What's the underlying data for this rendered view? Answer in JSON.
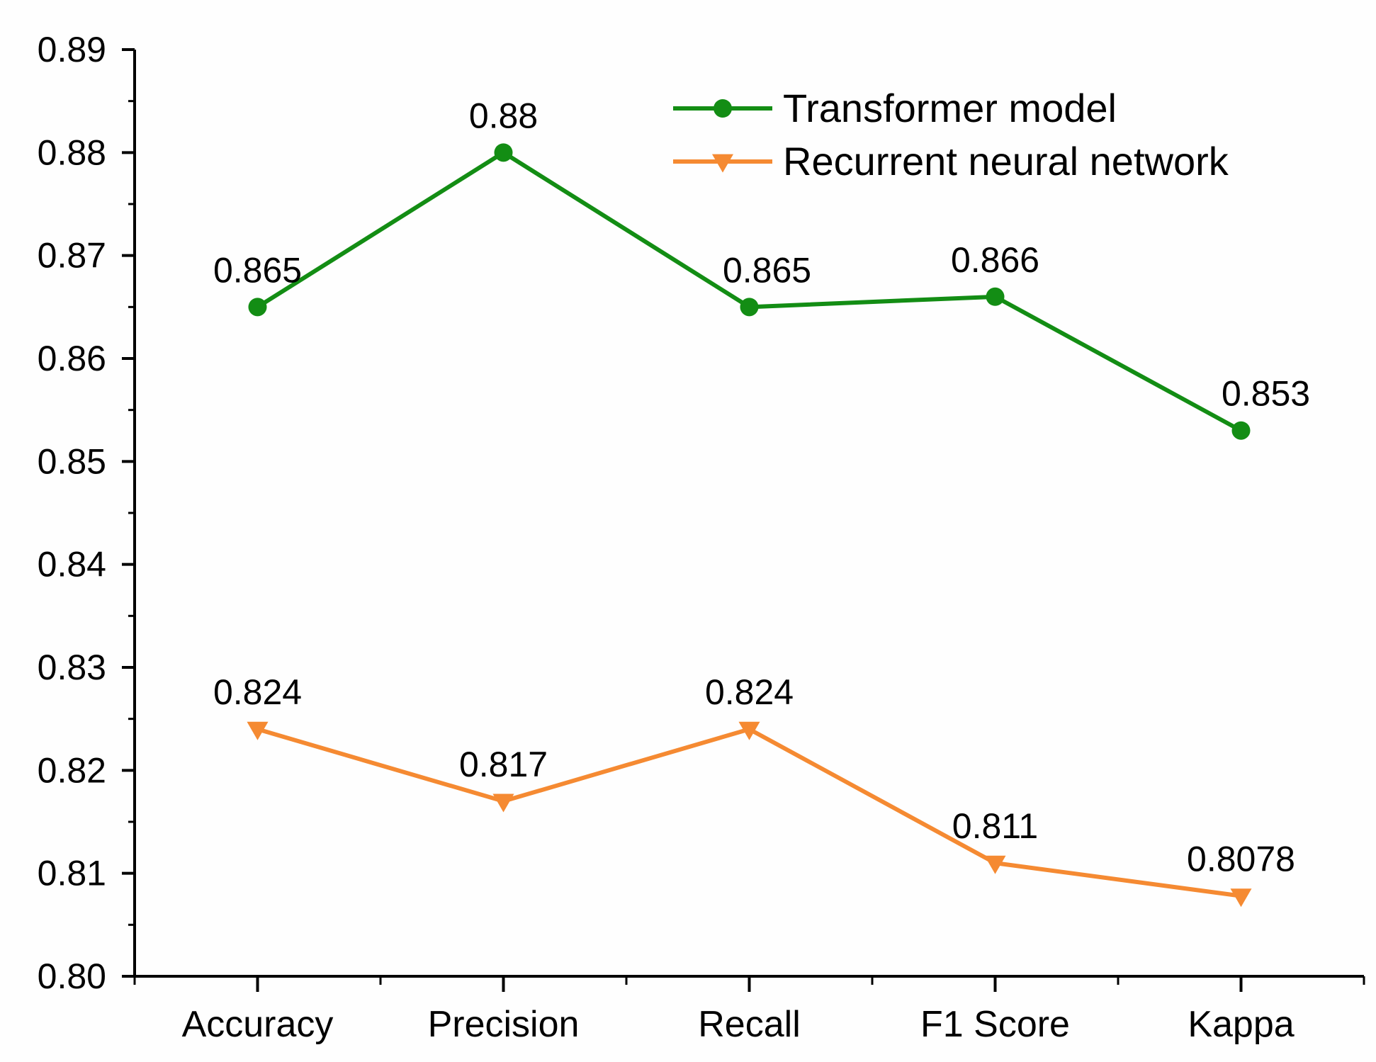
{
  "chart_data": {
    "type": "line",
    "title": "",
    "xlabel": "",
    "ylabel": "",
    "categories": [
      "Accuracy",
      "Precision",
      "Recall",
      "F1 Score",
      "Kappa"
    ],
    "ylim": [
      0.8,
      0.89
    ],
    "yticks": [
      "0.80",
      "0.81",
      "0.82",
      "0.83",
      "0.84",
      "0.85",
      "0.86",
      "0.87",
      "0.88",
      "0.89"
    ],
    "grid": false,
    "legend_position": "top-right",
    "series": [
      {
        "name": "Transformer model",
        "color": "#138d14",
        "marker": "circle",
        "values": [
          0.865,
          0.88,
          0.865,
          0.866,
          0.853
        ],
        "labels": [
          "0.865",
          "0.88",
          "0.865",
          "0.866",
          "0.853"
        ]
      },
      {
        "name": "Recurrent neural network",
        "color": "#f58a32",
        "marker": "triangle-down",
        "values": [
          0.824,
          0.817,
          0.824,
          0.811,
          0.8078
        ],
        "labels": [
          "0.824",
          "0.817",
          "0.824",
          "0.811",
          "0.8078"
        ]
      }
    ]
  }
}
